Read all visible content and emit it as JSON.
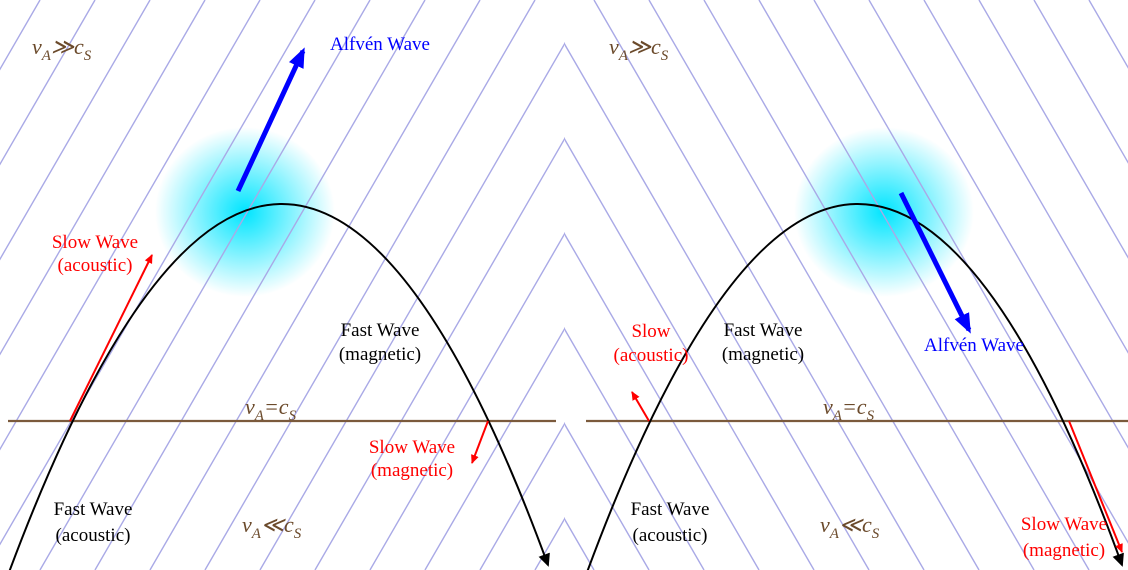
{
  "colors": {
    "field_lines": "#a9a9e6",
    "horizon": "#7b5a3c",
    "math_text": "#6b4a2b",
    "trajectory": "#000000",
    "slow_wave": "#ff0000",
    "alfven_wave": "#0000ff",
    "glow": "#00e5ff"
  },
  "panels": [
    {
      "labels": {
        "top_regime": {
          "var": "v",
          "sub1": "A",
          "op": "≫",
          "var2": "c",
          "sub2": "S"
        },
        "equal_regime": {
          "var": "v",
          "sub1": "A",
          "op": "=",
          "var2": "c",
          "sub2": "S"
        },
        "bottom_regime": {
          "var": "v",
          "sub1": "A",
          "op": "≪",
          "var2": "c",
          "sub2": "S"
        },
        "alfven": "Alfvén Wave",
        "slow_top_line1": "Slow Wave",
        "slow_top_line2": "(acoustic)",
        "fast_mag_line1": "Fast Wave",
        "fast_mag_line2": "(magnetic)",
        "slow_bottom_line1": "Slow Wave",
        "slow_bottom_line2": "(magnetic)",
        "fast_ac_line1": "Fast Wave",
        "fast_ac_line2": "(acoustic)"
      }
    },
    {
      "labels": {
        "top_regime": {
          "var": "v",
          "sub1": "A",
          "op": "≫",
          "var2": "c",
          "sub2": "S"
        },
        "equal_regime": {
          "var": "v",
          "sub1": "A",
          "op": "=",
          "var2": "c",
          "sub2": "S"
        },
        "bottom_regime": {
          "var": "v",
          "sub1": "A",
          "op": "≪",
          "var2": "c",
          "sub2": "S"
        },
        "alfven": "Alfvén Wave",
        "slow_top_line1": "Slow",
        "slow_top_line2": "(acoustic)",
        "fast_mag_line1": "Fast Wave",
        "fast_mag_line2": "(magnetic)",
        "slow_bottom_line1": "Slow Wave",
        "slow_bottom_line2": "(magnetic)",
        "fast_ac_line1": "Fast Wave",
        "fast_ac_line2": "(acoustic)"
      }
    }
  ]
}
